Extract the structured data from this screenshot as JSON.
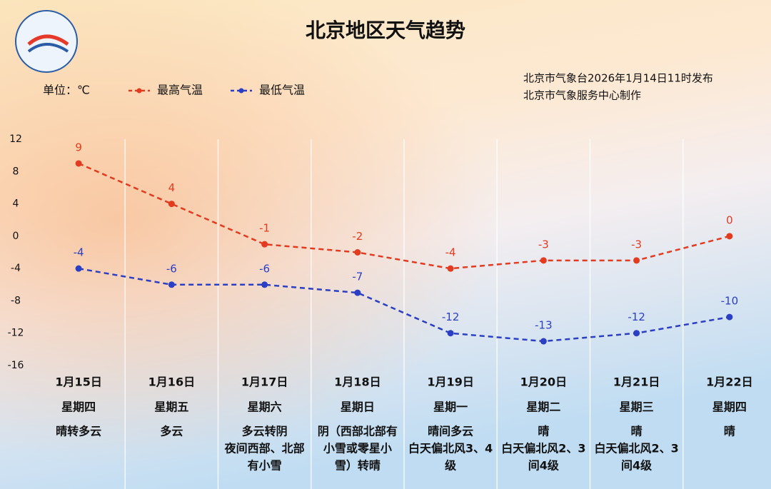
{
  "chart_data": {
    "type": "line",
    "title": "北京地区天气趋势",
    "unit": "单位：℃",
    "issuer": [
      "北京市气象台2026年1月14日11时发布",
      "北京市气象服务中心制作"
    ],
    "categories": [
      "1月15日",
      "1月16日",
      "1月17日",
      "1月18日",
      "1月19日",
      "1月20日",
      "1月21日",
      "1月22日"
    ],
    "weekdays": [
      "星期四",
      "星期五",
      "星期六",
      "星期日",
      "星期一",
      "星期二",
      "星期三",
      "星期四"
    ],
    "weather": [
      [
        "晴转多云"
      ],
      [
        "多云"
      ],
      [
        "多云转阴",
        "夜间西部、北部",
        "有小雪"
      ],
      [
        "阴（西部北部有",
        "小雪或零星小",
        "雪）转晴"
      ],
      [
        "晴间多云",
        "白天偏北风3、4",
        "级"
      ],
      [
        "晴",
        "白天偏北风2、3",
        "间4级"
      ],
      [
        "晴",
        "白天偏北风2、3",
        "间4级"
      ],
      [
        "晴"
      ]
    ],
    "series": [
      {
        "name": "最高气温",
        "color": "#e23b1f",
        "values": [
          9,
          4,
          -1,
          -2,
          -4,
          -3,
          -3,
          0
        ]
      },
      {
        "name": "最低气温",
        "color": "#2b3fc4",
        "values": [
          -4,
          -6,
          -6,
          -7,
          -12,
          -13,
          -12,
          -10
        ]
      }
    ],
    "ylim": [
      -16,
      12
    ],
    "yticks": [
      -16,
      -12,
      -8,
      -4,
      0,
      4,
      8,
      12
    ]
  }
}
